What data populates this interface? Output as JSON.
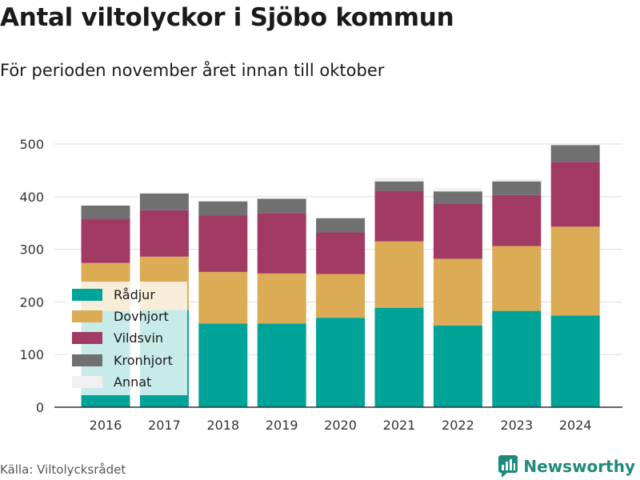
{
  "title": "Antal viltolyckor i Sjöbo kommun",
  "subtitle": "För perioden november året innan till oktober",
  "source": "Källa: Viltolycksrådet",
  "brand": "Newsworthy",
  "colors": {
    "radjur": "#00a398",
    "dovhjort": "#dcab55",
    "vildsvin": "#a13b63",
    "kronhjort": "#707070",
    "annat": "#f0f0f0",
    "brand": "#1f8a7a"
  },
  "chart_data": {
    "type": "bar",
    "stacked": true,
    "categories": [
      "2016",
      "2017",
      "2018",
      "2019",
      "2020",
      "2021",
      "2022",
      "2023",
      "2024"
    ],
    "series": [
      {
        "name": "Rådjur",
        "color": "#00a398",
        "values": [
          183,
          185,
          159,
          159,
          170,
          189,
          155,
          183,
          174
        ]
      },
      {
        "name": "Dovhjort",
        "color": "#dcab55",
        "values": [
          91,
          101,
          98,
          95,
          83,
          126,
          127,
          123,
          169
        ]
      },
      {
        "name": "Vildsvin",
        "color": "#a13b63",
        "values": [
          84,
          88,
          107,
          115,
          79,
          96,
          104,
          97,
          123
        ]
      },
      {
        "name": "Kronhjort",
        "color": "#707070",
        "values": [
          25,
          32,
          27,
          27,
          27,
          18,
          24,
          26,
          32
        ]
      },
      {
        "name": "Annat",
        "color": "#f0f0f0",
        "values": [
          0,
          0,
          0,
          0,
          0,
          7,
          7,
          4,
          2
        ]
      }
    ],
    "ylim": [
      0,
      500
    ],
    "yticks": [
      0,
      100,
      200,
      300,
      400,
      500
    ],
    "grid": true,
    "legend_position": "bottom-left inside"
  }
}
